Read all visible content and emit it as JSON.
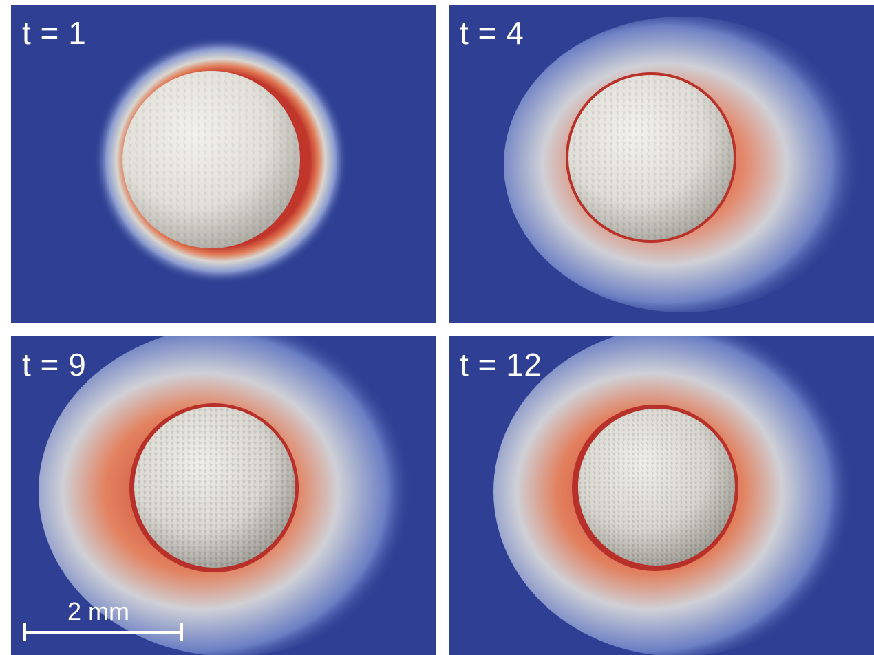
{
  "panels": [
    {
      "id": "p1",
      "label": "t = 1"
    },
    {
      "id": "p2",
      "label": "t = 4"
    },
    {
      "id": "p3",
      "label": "t = 9"
    },
    {
      "id": "p4",
      "label": "t = 12"
    }
  ],
  "scale_bar": {
    "label": "2 mm"
  },
  "colors": {
    "background_field": "#2f3f93",
    "halo_light": "#c9d3e6",
    "halo_red": "#c8381f",
    "sphere": "#e6e4de",
    "sphere_shadow": "#9d9a94"
  }
}
